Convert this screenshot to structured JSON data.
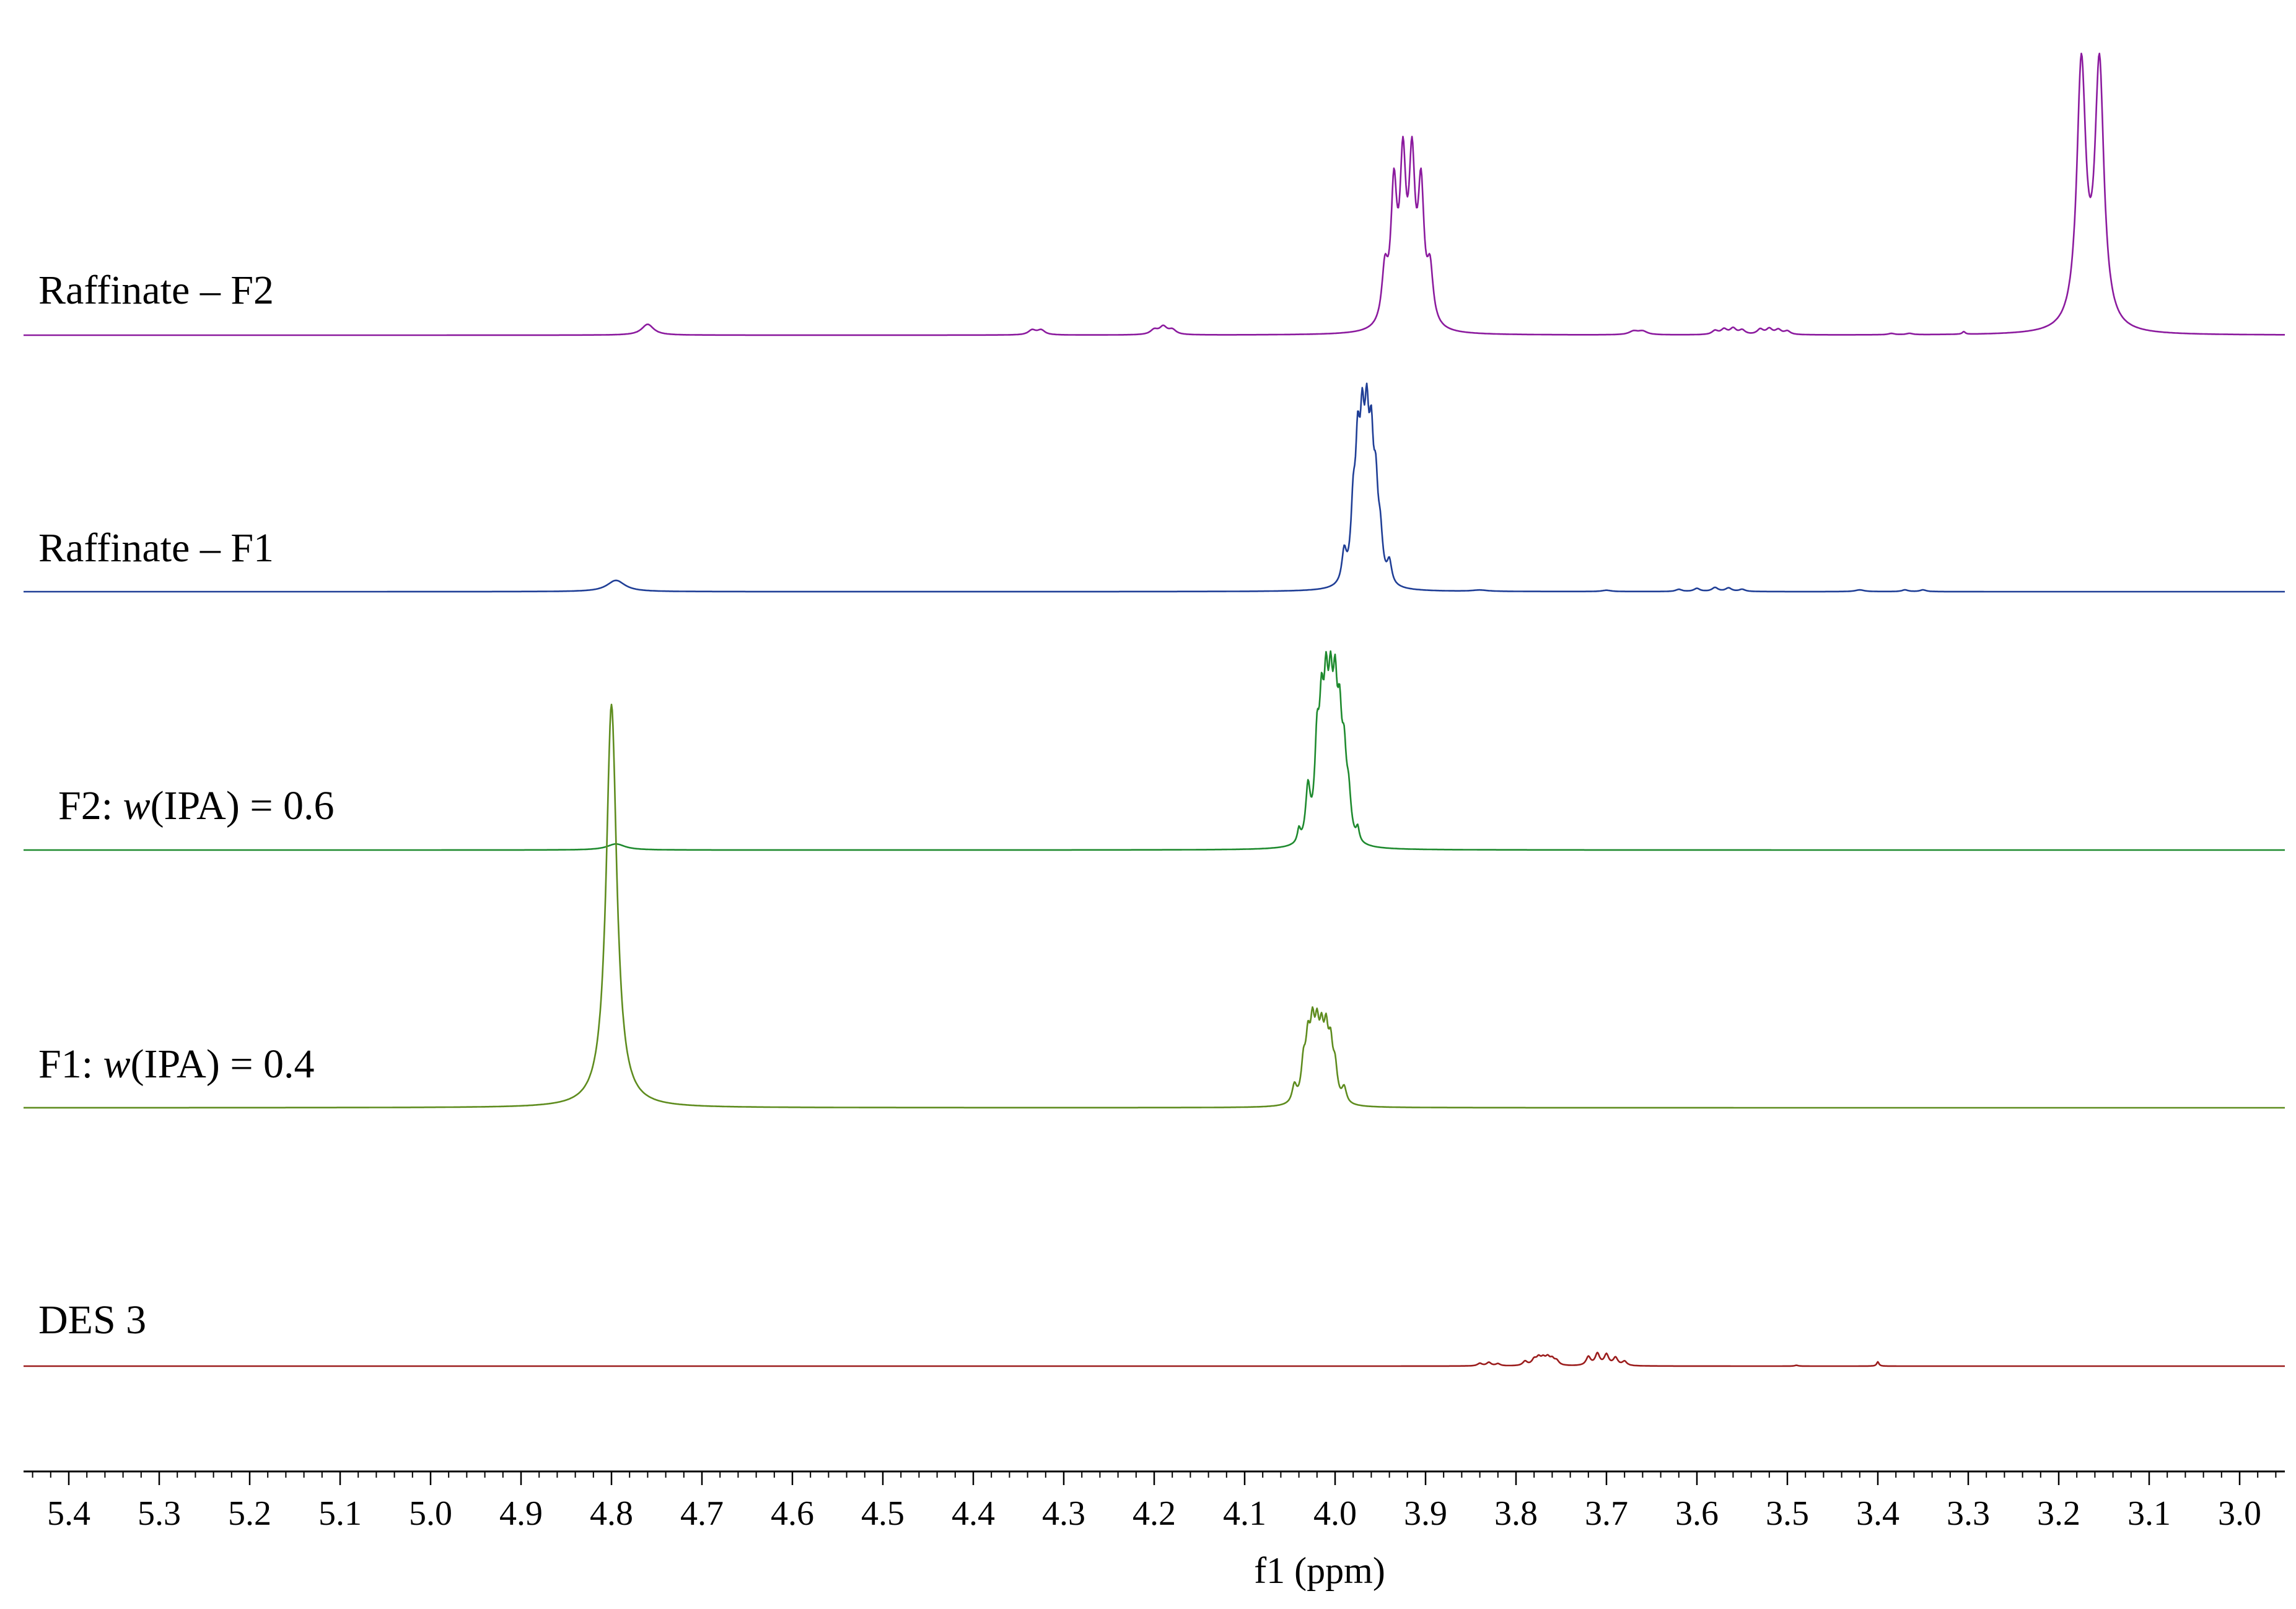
{
  "chart_data": {
    "type": "line",
    "title": "",
    "xlabel": "f1 (ppm)",
    "ylabel": "",
    "xlim": [
      5.45,
      2.95
    ],
    "x_reversed": true,
    "grid": false,
    "ticks": [
      "5.4",
      "5.3",
      "5.2",
      "5.1",
      "5.0",
      "4.9",
      "4.8",
      "4.7",
      "4.6",
      "4.5",
      "4.4",
      "4.3",
      "4.2",
      "4.1",
      "4.0",
      "3.9",
      "3.8",
      "3.7",
      "3.6",
      "3.5",
      "3.4",
      "3.3",
      "3.2",
      "3.1",
      "3.0"
    ],
    "series": [
      {
        "name": "Raffinate – F2",
        "label_prefix": "Raffinate – F2",
        "label_italic": "",
        "label_suffix": "",
        "color": "#8B1A9E",
        "peaks": [
          {
            "ppm": 4.76,
            "height": 0.25,
            "width": 0.008
          },
          {
            "ppm": 4.335,
            "height": 0.11,
            "width": 0.005
          },
          {
            "ppm": 4.325,
            "height": 0.11,
            "width": 0.005
          },
          {
            "ppm": 4.2,
            "height": 0.11,
            "width": 0.005
          },
          {
            "ppm": 4.19,
            "height": 0.18,
            "width": 0.005
          },
          {
            "ppm": 4.18,
            "height": 0.11,
            "width": 0.005
          },
          {
            "ppm": 3.945,
            "height": 1.2,
            "width": 0.004
          },
          {
            "ppm": 3.935,
            "height": 3.0,
            "width": 0.004
          },
          {
            "ppm": 3.925,
            "height": 3.5,
            "width": 0.004
          },
          {
            "ppm": 3.915,
            "height": 3.5,
            "width": 0.004
          },
          {
            "ppm": 3.905,
            "height": 3.0,
            "width": 0.004
          },
          {
            "ppm": 3.895,
            "height": 1.2,
            "width": 0.004
          },
          {
            "ppm": 3.67,
            "height": 0.08,
            "width": 0.006
          },
          {
            "ppm": 3.66,
            "height": 0.08,
            "width": 0.006
          },
          {
            "ppm": 3.58,
            "height": 0.09,
            "width": 0.004
          },
          {
            "ppm": 3.57,
            "height": 0.12,
            "width": 0.004
          },
          {
            "ppm": 3.56,
            "height": 0.14,
            "width": 0.004
          },
          {
            "ppm": 3.55,
            "height": 0.1,
            "width": 0.004
          },
          {
            "ppm": 3.53,
            "height": 0.12,
            "width": 0.004
          },
          {
            "ppm": 3.52,
            "height": 0.13,
            "width": 0.004
          },
          {
            "ppm": 3.51,
            "height": 0.11,
            "width": 0.004
          },
          {
            "ppm": 3.5,
            "height": 0.08,
            "width": 0.004
          },
          {
            "ppm": 3.385,
            "height": 0.03,
            "width": 0.004
          },
          {
            "ppm": 3.365,
            "height": 0.03,
            "width": 0.004
          },
          {
            "ppm": 3.305,
            "height": 0.06,
            "width": 0.002
          },
          {
            "ppm": 3.175,
            "height": 6.0,
            "width": 0.006
          },
          {
            "ppm": 3.155,
            "height": 6.0,
            "width": 0.006
          }
        ]
      },
      {
        "name": "Raffinate – F1",
        "label_prefix": "Raffinate – F1",
        "label_italic": "",
        "label_suffix": "",
        "color": "#1F3E96",
        "peaks": [
          {
            "ppm": 4.795,
            "height": 0.26,
            "width": 0.012
          },
          {
            "ppm": 3.99,
            "height": 0.7,
            "width": 0.003
          },
          {
            "ppm": 3.98,
            "height": 1.5,
            "width": 0.003
          },
          {
            "ppm": 3.975,
            "height": 2.6,
            "width": 0.003
          },
          {
            "ppm": 3.97,
            "height": 2.8,
            "width": 0.003
          },
          {
            "ppm": 3.965,
            "height": 2.9,
            "width": 0.003
          },
          {
            "ppm": 3.96,
            "height": 2.6,
            "width": 0.003
          },
          {
            "ppm": 3.955,
            "height": 1.8,
            "width": 0.003
          },
          {
            "ppm": 3.95,
            "height": 0.9,
            "width": 0.003
          },
          {
            "ppm": 3.94,
            "height": 0.5,
            "width": 0.003
          },
          {
            "ppm": 3.84,
            "height": 0.03,
            "width": 0.01
          },
          {
            "ppm": 3.7,
            "height": 0.03,
            "width": 0.006
          },
          {
            "ppm": 3.62,
            "height": 0.05,
            "width": 0.004
          },
          {
            "ppm": 3.6,
            "height": 0.07,
            "width": 0.004
          },
          {
            "ppm": 3.58,
            "height": 0.09,
            "width": 0.004
          },
          {
            "ppm": 3.565,
            "height": 0.08,
            "width": 0.004
          },
          {
            "ppm": 3.55,
            "height": 0.05,
            "width": 0.004
          },
          {
            "ppm": 3.42,
            "height": 0.04,
            "width": 0.006
          },
          {
            "ppm": 3.37,
            "height": 0.04,
            "width": 0.004
          },
          {
            "ppm": 3.35,
            "height": 0.04,
            "width": 0.004
          }
        ]
      },
      {
        "name": "F2: w(IPA) = 0.6",
        "label_prefix": "F2: ",
        "label_italic": "w",
        "label_suffix": "(IPA) = 0.6",
        "color": "#1E8A2E",
        "peaks": [
          {
            "ppm": 4.795,
            "height": 0.14,
            "width": 0.012
          },
          {
            "ppm": 4.04,
            "height": 0.3,
            "width": 0.002
          },
          {
            "ppm": 4.03,
            "height": 1.2,
            "width": 0.003
          },
          {
            "ppm": 4.02,
            "height": 2.0,
            "width": 0.003
          },
          {
            "ppm": 4.015,
            "height": 2.4,
            "width": 0.003
          },
          {
            "ppm": 4.01,
            "height": 2.7,
            "width": 0.003
          },
          {
            "ppm": 4.005,
            "height": 2.6,
            "width": 0.003
          },
          {
            "ppm": 4.0,
            "height": 2.7,
            "width": 0.003
          },
          {
            "ppm": 3.995,
            "height": 2.2,
            "width": 0.003
          },
          {
            "ppm": 3.99,
            "height": 1.6,
            "width": 0.003
          },
          {
            "ppm": 3.985,
            "height": 0.9,
            "width": 0.003
          },
          {
            "ppm": 3.975,
            "height": 0.3,
            "width": 0.002
          }
        ]
      },
      {
        "name": "F1: w(IPA) = 0.4",
        "label_prefix": "F1: ",
        "label_italic": "w",
        "label_suffix": "(IPA) = 0.4",
        "color": "#5E8C1E",
        "peaks": [
          {
            "ppm": 4.8,
            "height": 9.3,
            "width": 0.007
          },
          {
            "ppm": 4.045,
            "height": 0.4,
            "width": 0.003
          },
          {
            "ppm": 4.035,
            "height": 0.8,
            "width": 0.003
          },
          {
            "ppm": 4.03,
            "height": 1.2,
            "width": 0.003
          },
          {
            "ppm": 4.025,
            "height": 1.4,
            "width": 0.003
          },
          {
            "ppm": 4.02,
            "height": 1.3,
            "width": 0.003
          },
          {
            "ppm": 4.015,
            "height": 1.2,
            "width": 0.003
          },
          {
            "ppm": 4.01,
            "height": 1.3,
            "width": 0.003
          },
          {
            "ppm": 4.005,
            "height": 1.1,
            "width": 0.003
          },
          {
            "ppm": 4.0,
            "height": 0.7,
            "width": 0.003
          },
          {
            "ppm": 3.99,
            "height": 0.35,
            "width": 0.003
          }
        ]
      },
      {
        "name": "DES 3",
        "label_prefix": "DES 3",
        "label_italic": "",
        "label_suffix": "",
        "color": "#9B1C1C",
        "peaks": [
          {
            "ppm": 3.84,
            "height": 0.06,
            "width": 0.003
          },
          {
            "ppm": 3.83,
            "height": 0.08,
            "width": 0.003
          },
          {
            "ppm": 3.82,
            "height": 0.05,
            "width": 0.003
          },
          {
            "ppm": 3.79,
            "height": 0.1,
            "width": 0.003
          },
          {
            "ppm": 3.78,
            "height": 0.13,
            "width": 0.003
          },
          {
            "ppm": 3.775,
            "height": 0.16,
            "width": 0.003
          },
          {
            "ppm": 3.77,
            "height": 0.14,
            "width": 0.003
          },
          {
            "ppm": 3.765,
            "height": 0.16,
            "width": 0.003
          },
          {
            "ppm": 3.76,
            "height": 0.13,
            "width": 0.003
          },
          {
            "ppm": 3.755,
            "height": 0.1,
            "width": 0.003
          },
          {
            "ppm": 3.72,
            "height": 0.2,
            "width": 0.003
          },
          {
            "ppm": 3.71,
            "height": 0.27,
            "width": 0.003
          },
          {
            "ppm": 3.7,
            "height": 0.25,
            "width": 0.003
          },
          {
            "ppm": 3.69,
            "height": 0.18,
            "width": 0.003
          },
          {
            "ppm": 3.68,
            "height": 0.1,
            "width": 0.003
          },
          {
            "ppm": 3.49,
            "height": 0.02,
            "width": 0.002
          },
          {
            "ppm": 3.4,
            "height": 0.1,
            "width": 0.0015
          }
        ]
      }
    ]
  }
}
